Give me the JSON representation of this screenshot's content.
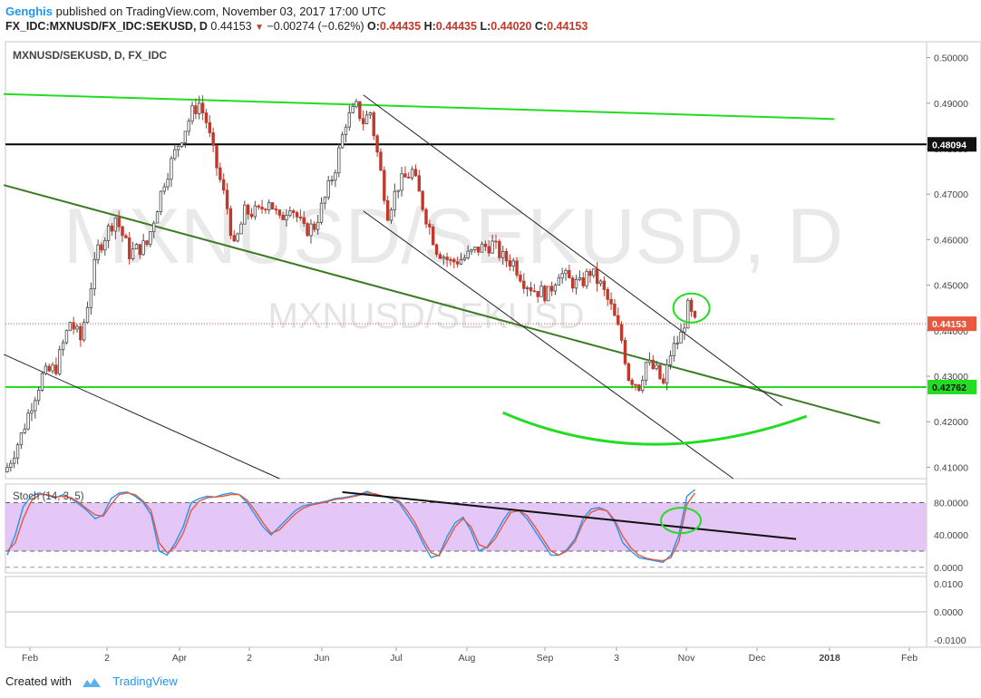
{
  "header": {
    "user": "Genghis",
    "published_text": "published on TradingView.com, November 03, 2017 17:00 UTC",
    "symbol_line": "FX_IDC:MXNUSD/FX_IDC:SEKUSD, D",
    "last_value": "0.44153",
    "down_arrow": "▼",
    "change": "−0.00274 (−0.62%)",
    "o_label": "O:",
    "o_value": "0.44435",
    "h_label": "H:",
    "h_value": "0.44435",
    "l_label": "L:",
    "l_value": "0.44020",
    "c_label": "C:",
    "c_value": "0.44153"
  },
  "main_pane": {
    "legend": "MXNUSD/SEKUSD, D, FX_IDC",
    "watermark_big": "MXNUSD/SEKUSD, D",
    "watermark_small": "MXNUSD/SEKUSD"
  },
  "stoch_pane": {
    "legend": "Stoch (14, 3, 5)"
  },
  "footer": {
    "created_with": "Created with",
    "brand": "TradingView"
  },
  "colors": {
    "bull": "#4a4a4a",
    "bear": "#c0392b",
    "bright_green": "#22dd22",
    "dark_green": "#3d7a25",
    "stoch_k": "#2196f3",
    "stoch_d": "#e9573f",
    "stoch_band": "#e4c6f7",
    "price_badge": "#e9573f"
  },
  "chart_data": [
    {
      "type": "candlestick",
      "title": "MXNUSD/SEKUSD, D, FX_IDC",
      "x_ticks": [
        "Feb",
        "2",
        "Apr",
        "2",
        "Jun",
        "Jul",
        "Aug",
        "Sep",
        "3",
        "Nov",
        "Dec",
        "2018",
        "Feb"
      ],
      "y_ticks": [
        "0.41000",
        "0.42000",
        "0.43000",
        "0.44000",
        "0.45000",
        "0.46000",
        "0.47000",
        "0.48000",
        "0.49000",
        "0.50000"
      ],
      "ylim": [
        0.4075,
        0.5035
      ],
      "price_labels": [
        {
          "text": "0.48094",
          "value": 0.48094,
          "style": "black"
        },
        {
          "text": "0.44153",
          "value": 0.44153,
          "style": "red"
        },
        {
          "text": "0.42762",
          "value": 0.42762,
          "style": "green"
        }
      ],
      "horizontal_lines": [
        {
          "value": 0.48094,
          "color": "#000000"
        },
        {
          "value": 0.42762,
          "color": "#22dd22"
        }
      ],
      "close_anchors": [
        {
          "t": 0,
          "v": 0.41
        },
        {
          "t": 4,
          "v": 0.417
        },
        {
          "t": 7,
          "v": 0.424
        },
        {
          "t": 10,
          "v": 0.43
        },
        {
          "t": 14,
          "v": 0.432
        },
        {
          "t": 18,
          "v": 0.442
        },
        {
          "t": 21,
          "v": 0.438
        },
        {
          "t": 26,
          "v": 0.458
        },
        {
          "t": 31,
          "v": 0.465
        },
        {
          "t": 35,
          "v": 0.457
        },
        {
          "t": 40,
          "v": 0.459
        },
        {
          "t": 45,
          "v": 0.473
        },
        {
          "t": 49,
          "v": 0.481
        },
        {
          "t": 53,
          "v": 0.488
        },
        {
          "t": 55,
          "v": 0.49
        },
        {
          "t": 57,
          "v": 0.486
        },
        {
          "t": 59,
          "v": 0.479
        },
        {
          "t": 63,
          "v": 0.467
        },
        {
          "t": 65,
          "v": 0.458
        },
        {
          "t": 68,
          "v": 0.466
        },
        {
          "t": 72,
          "v": 0.466
        },
        {
          "t": 75,
          "v": 0.469
        },
        {
          "t": 78,
          "v": 0.464
        },
        {
          "t": 81,
          "v": 0.468
        },
        {
          "t": 85,
          "v": 0.462
        },
        {
          "t": 88,
          "v": 0.463
        },
        {
          "t": 91,
          "v": 0.469
        },
        {
          "t": 94,
          "v": 0.476
        },
        {
          "t": 97,
          "v": 0.486
        },
        {
          "t": 100,
          "v": 0.489
        },
        {
          "t": 102,
          "v": 0.486
        },
        {
          "t": 104,
          "v": 0.488
        },
        {
          "t": 106,
          "v": 0.479
        },
        {
          "t": 109,
          "v": 0.466
        },
        {
          "t": 112,
          "v": 0.472
        },
        {
          "t": 116,
          "v": 0.475
        },
        {
          "t": 120,
          "v": 0.465
        },
        {
          "t": 123,
          "v": 0.458
        },
        {
          "t": 127,
          "v": 0.455
        },
        {
          "t": 131,
          "v": 0.456
        },
        {
          "t": 135,
          "v": 0.458
        },
        {
          "t": 139,
          "v": 0.459
        },
        {
          "t": 142,
          "v": 0.456
        },
        {
          "t": 145,
          "v": 0.455
        },
        {
          "t": 148,
          "v": 0.451
        },
        {
          "t": 151,
          "v": 0.449
        },
        {
          "t": 155,
          "v": 0.448
        },
        {
          "t": 158,
          "v": 0.453
        },
        {
          "t": 161,
          "v": 0.451
        },
        {
          "t": 164,
          "v": 0.45
        },
        {
          "t": 167,
          "v": 0.453
        },
        {
          "t": 170,
          "v": 0.45
        },
        {
          "t": 173,
          "v": 0.445
        },
        {
          "t": 176,
          "v": 0.438
        },
        {
          "t": 178,
          "v": 0.43
        },
        {
          "t": 181,
          "v": 0.428
        },
        {
          "t": 183,
          "v": 0.433
        },
        {
          "t": 186,
          "v": 0.431
        },
        {
          "t": 188,
          "v": 0.428
        },
        {
          "t": 190,
          "v": 0.435
        },
        {
          "t": 193,
          "v": 0.439
        },
        {
          "t": 195,
          "v": 0.445
        },
        {
          "t": 197,
          "v": 0.4415
        }
      ],
      "trendlines": [
        {
          "name": "upper-resistance",
          "t1": -1,
          "v1": 0.492,
          "t2": 237,
          "v2": 0.4865,
          "color": "#22dd22"
        },
        {
          "name": "long-support",
          "t1": -1,
          "v1": 0.472,
          "t2": 250,
          "v2": 0.4197,
          "color": "#3d7a25"
        },
        {
          "name": "channel-upper",
          "t1": 102,
          "v1": 0.4918,
          "t2": 222,
          "v2": 0.4235,
          "color": "#222222"
        },
        {
          "name": "channel-lower",
          "t1": 102,
          "v1": 0.4663,
          "t2": 208,
          "v2": 0.4075,
          "color": "#222222"
        },
        {
          "name": "old-downtrend",
          "t1": -1,
          "v1": 0.4348,
          "t2": 78,
          "v2": 0.4075,
          "color": "#222222"
        }
      ]
    },
    {
      "type": "line",
      "title": "Stoch (14, 3, 5)",
      "y_ticks": [
        "0.0000",
        "40.0000",
        "80.0000"
      ],
      "ylim": [
        -7,
        103
      ],
      "band": [
        20,
        80
      ],
      "series": [
        {
          "name": "%K",
          "values": [
            15,
            40,
            75,
            88,
            92,
            89,
            86,
            90,
            85,
            78,
            70,
            60,
            65,
            85,
            92,
            93,
            88,
            80,
            65,
            20,
            15,
            30,
            50,
            80,
            85,
            88,
            87,
            90,
            92,
            90,
            80,
            65,
            50,
            40,
            50,
            60,
            70,
            76,
            78,
            80,
            82,
            85,
            86,
            88,
            90,
            94,
            90,
            88,
            85,
            80,
            65,
            50,
            30,
            12,
            15,
            38,
            55,
            62,
            45,
            20,
            25,
            40,
            58,
            72,
            70,
            60,
            45,
            30,
            15,
            15,
            22,
            35,
            60,
            72,
            74,
            70,
            55,
            30,
            20,
            12,
            10,
            8,
            6,
            15,
            40,
            88,
            96
          ]
        },
        {
          "name": "%D",
          "values": [
            20,
            30,
            60,
            82,
            90,
            90,
            87,
            88,
            86,
            80,
            72,
            65,
            63,
            78,
            90,
            92,
            90,
            82,
            70,
            30,
            18,
            25,
            42,
            70,
            82,
            86,
            87,
            88,
            90,
            90,
            83,
            70,
            55,
            42,
            46,
            56,
            66,
            73,
            77,
            79,
            81,
            84,
            85,
            87,
            89,
            92,
            91,
            88,
            86,
            82,
            70,
            55,
            35,
            18,
            14,
            32,
            50,
            60,
            50,
            28,
            24,
            35,
            52,
            68,
            70,
            64,
            50,
            35,
            20,
            15,
            20,
            32,
            55,
            68,
            72,
            70,
            58,
            38,
            24,
            15,
            11,
            9,
            8,
            12,
            32,
            78,
            92
          ]
        }
      ],
      "trendlines": [
        {
          "t1": 96,
          "v1": 93,
          "t2": 226,
          "v2": 35,
          "color": "#111111"
        }
      ]
    },
    {
      "type": "line",
      "title": "",
      "y_ticks": [
        "0.0100",
        "0.0000",
        "-0.0100"
      ],
      "ylim": [
        -0.0125,
        0.0125
      ],
      "series": []
    }
  ]
}
